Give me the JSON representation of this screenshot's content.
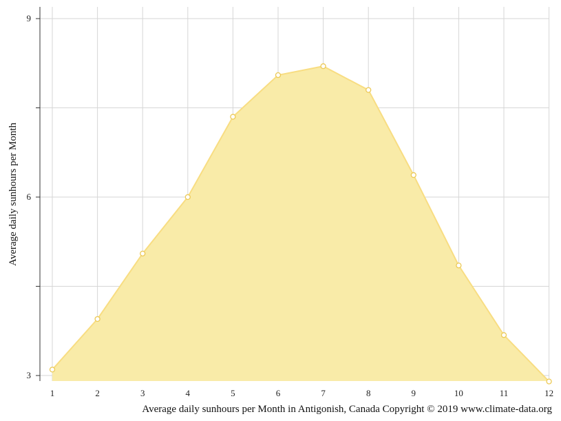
{
  "chart_data": {
    "type": "area",
    "x": [
      1,
      2,
      3,
      4,
      5,
      6,
      7,
      8,
      9,
      10,
      11,
      12
    ],
    "categories": [
      "1",
      "2",
      "3",
      "4",
      "5",
      "6",
      "7",
      "8",
      "9",
      "10",
      "11",
      "12"
    ],
    "values": [
      3.1,
      3.95,
      5.05,
      6.0,
      7.35,
      8.05,
      8.2,
      7.8,
      6.37,
      4.85,
      3.68,
      2.9
    ],
    "y_ticks": [
      "9",
      "6",
      "3"
    ],
    "ylim": [
      2.9,
      9.2
    ],
    "title": "",
    "xlabel": "",
    "ylabel": "Average daily sunhours per Month",
    "caption": "Average daily sunhours per Month in Antigonish, Canada Copyright © 2019 www.climate-data.org",
    "grid": true,
    "legend": "none",
    "colors": {
      "fill": "#f9eba8",
      "line": "#f8dd82",
      "marker_stroke": "#ecc955",
      "marker_fill": "#ffffff"
    }
  }
}
